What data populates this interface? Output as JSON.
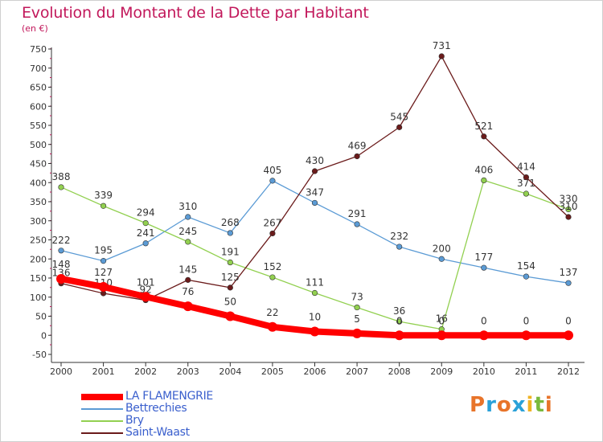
{
  "header": {
    "title": "Evolution du Montant de la Dette par Habitant",
    "subtitle": "(en €)"
  },
  "brand": {
    "letters": [
      "P",
      "r",
      "o",
      "x",
      "i",
      "t",
      "i"
    ],
    "colors": [
      "#e8742a",
      "#2aa1d8",
      "#e8742a",
      "#2aa1d8",
      "#f0b323",
      "#79b93c",
      "#e8742a"
    ]
  },
  "chart_data": {
    "type": "line",
    "title": "Evolution du Montant de la Dette par Habitant",
    "subtitle": "(en €)",
    "x": [
      2000,
      2001,
      2002,
      2003,
      2004,
      2005,
      2006,
      2007,
      2008,
      2009,
      2010,
      2011,
      2012
    ],
    "ylim": [
      -50,
      750
    ],
    "yticks": [
      -50,
      0,
      50,
      100,
      150,
      200,
      250,
      300,
      350,
      400,
      450,
      500,
      550,
      600,
      650,
      700,
      750
    ],
    "grid": false,
    "legend_position": "bottom-left",
    "series": [
      {
        "name": "LA FLAMENGRIE",
        "color": "#ff0000",
        "values": [
          148,
          127,
          101,
          76,
          50,
          22,
          10,
          5,
          0,
          0,
          0,
          0,
          0
        ]
      },
      {
        "name": "Bettrechies",
        "color": "#5b9bd5",
        "values": [
          222,
          195,
          241,
          310,
          268,
          405,
          347,
          291,
          232,
          200,
          177,
          154,
          137
        ]
      },
      {
        "name": "Bry",
        "color": "#92d050",
        "values": [
          388,
          339,
          294,
          245,
          191,
          152,
          111,
          73,
          36,
          16,
          406,
          371,
          330
        ]
      },
      {
        "name": "Saint-Waast",
        "color": "#6b1b1b",
        "values": [
          136,
          110,
          92,
          145,
          125,
          267,
          430,
          469,
          545,
          731,
          521,
          414,
          310
        ]
      }
    ]
  }
}
